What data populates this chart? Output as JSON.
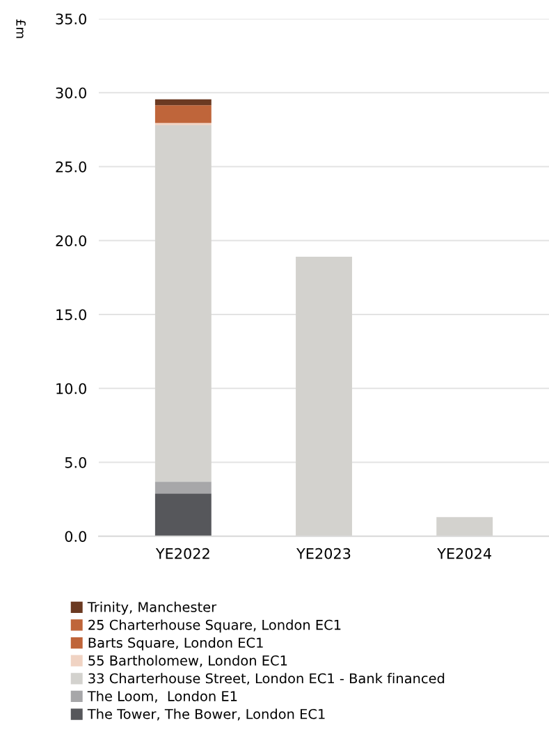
{
  "chart_data": {
    "type": "bar",
    "stacked": true,
    "ylabel": "£m",
    "categories": [
      "YE2022",
      "YE2023",
      "YE2024"
    ],
    "series": [
      {
        "name": "The Tower, The Bower, London EC1",
        "color": "#56575b",
        "values": [
          2.9,
          0,
          0
        ]
      },
      {
        "name": "The Loom,  London E1",
        "color": "#a7a7a9",
        "values": [
          0.8,
          0,
          0
        ]
      },
      {
        "name": "33 Charterhouse Street, London EC1 - Bank financed",
        "color": "#d3d2ce",
        "values": [
          24.1,
          18.9,
          1.3
        ]
      },
      {
        "name": "55 Bartholomew, London EC1",
        "color": "#f0d3c3",
        "values": [
          0.15,
          0,
          0
        ]
      },
      {
        "name": "Barts Square, London EC1",
        "color": "#bf653a",
        "values": [
          0.6,
          0,
          0
        ]
      },
      {
        "name": "25 Charterhouse Square, London EC1",
        "color": "#bf653a",
        "values": [
          0.6,
          0,
          0
        ]
      },
      {
        "name": "Trinity, Manchester",
        "color": "#6b3a22",
        "values": [
          0.4,
          0,
          0
        ]
      }
    ],
    "ylim": [
      0,
      35
    ],
    "yticks": [
      {
        "value": 0,
        "label": "0.0"
      },
      {
        "value": 5,
        "label": "5.0"
      },
      {
        "value": 10,
        "label": "10.0"
      },
      {
        "value": 15,
        "label": "15.0"
      },
      {
        "value": 20,
        "label": "20.0"
      },
      {
        "value": 25,
        "label": "25.0"
      },
      {
        "value": 30,
        "label": "30.0"
      },
      {
        "value": 35,
        "label": "35.0"
      }
    ],
    "grid": "y",
    "legend": "bottom"
  }
}
